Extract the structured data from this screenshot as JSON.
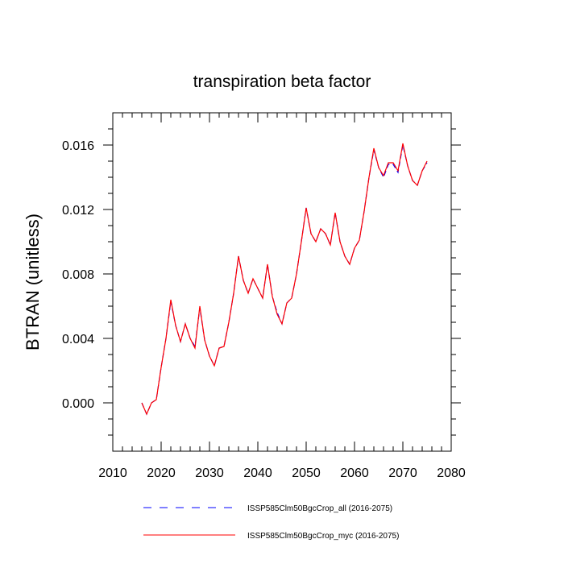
{
  "chart_data": {
    "type": "line",
    "title": "transpiration beta factor",
    "ylabel": "BTRAN  (unitless)",
    "xlabel": "",
    "xlim": [
      2010,
      2080
    ],
    "ylim": [
      -0.003,
      0.018
    ],
    "xticks": [
      2010,
      2020,
      2030,
      2040,
      2050,
      2060,
      2070,
      2080
    ],
    "xtick_labels": [
      "2010",
      "2020",
      "2030",
      "2040",
      "2050",
      "2060",
      "2070",
      "2080"
    ],
    "yticks": [
      0.0,
      0.004,
      0.008,
      0.012,
      0.016
    ],
    "ytick_labels": [
      "0.000",
      "0.004",
      "0.008",
      "0.012",
      "0.016"
    ],
    "grid": false,
    "legend_position": "bottom",
    "x": [
      2016,
      2017,
      2018,
      2019,
      2020,
      2021,
      2022,
      2023,
      2024,
      2025,
      2026,
      2027,
      2028,
      2029,
      2030,
      2031,
      2032,
      2033,
      2034,
      2035,
      2036,
      2037,
      2038,
      2039,
      2040,
      2041,
      2042,
      2043,
      2044,
      2045,
      2046,
      2047,
      2048,
      2049,
      2050,
      2051,
      2052,
      2053,
      2054,
      2055,
      2056,
      2057,
      2058,
      2059,
      2060,
      2061,
      2062,
      2063,
      2064,
      2065,
      2066,
      2067,
      2068,
      2069,
      2070,
      2071,
      2072,
      2073,
      2074,
      2075
    ],
    "series": [
      {
        "name": "ISSP585Clm50BgcCrop_all (2016-2075)",
        "color": "#0000ff",
        "dash": "dashed",
        "values": [
          0.0,
          -0.0007,
          0.0,
          0.0002,
          0.0022,
          0.004,
          0.0063,
          0.0048,
          0.0038,
          0.0049,
          0.004,
          0.0035,
          0.0059,
          0.0039,
          0.0029,
          0.0023,
          0.0034,
          0.0035,
          0.005,
          0.0068,
          0.0091,
          0.0076,
          0.0068,
          0.0077,
          0.0071,
          0.0065,
          0.0086,
          0.0066,
          0.0056,
          0.0049,
          0.0062,
          0.0065,
          0.008,
          0.01,
          0.0121,
          0.0105,
          0.01,
          0.0108,
          0.0105,
          0.0098,
          0.0118,
          0.01,
          0.0091,
          0.0086,
          0.0096,
          0.0101,
          0.0119,
          0.014,
          0.0157,
          0.0146,
          0.014,
          0.0148,
          0.0148,
          0.0143,
          0.016,
          0.0147,
          0.0138,
          0.0135,
          0.0144,
          0.0149
        ]
      },
      {
        "name": "ISSP585Clm50BgcCrop_myc (2016-2075)",
        "color": "#ff0000",
        "dash": "solid",
        "values": [
          0.0,
          -0.0007,
          0.0,
          0.0002,
          0.0022,
          0.004,
          0.0064,
          0.0048,
          0.0038,
          0.0049,
          0.004,
          0.0034,
          0.006,
          0.0039,
          0.0029,
          0.0023,
          0.0034,
          0.0035,
          0.005,
          0.0068,
          0.0091,
          0.0076,
          0.0068,
          0.0077,
          0.0071,
          0.0065,
          0.0086,
          0.0066,
          0.0055,
          0.0049,
          0.0062,
          0.0065,
          0.008,
          0.01,
          0.0121,
          0.0105,
          0.01,
          0.0108,
          0.0105,
          0.0098,
          0.0118,
          0.01,
          0.0091,
          0.0086,
          0.0096,
          0.0101,
          0.0119,
          0.014,
          0.0158,
          0.0146,
          0.0141,
          0.0149,
          0.0149,
          0.0144,
          0.0161,
          0.0147,
          0.0138,
          0.0135,
          0.0144,
          0.015
        ]
      }
    ]
  }
}
